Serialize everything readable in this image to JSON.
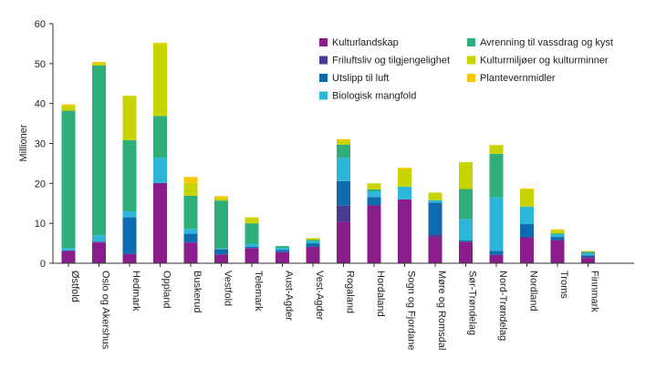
{
  "chart_data": {
    "type": "bar",
    "stacked": true,
    "ylabel": "Millioner",
    "ylim": [
      0,
      60
    ],
    "yticks": [
      0,
      10,
      20,
      30,
      40,
      50,
      60
    ],
    "grid": false,
    "legend_position": "top-right",
    "categories": [
      "Østfold",
      "Oslo og Akershus",
      "Hedmark",
      "Oppland",
      "Buskerud",
      "Vestfold",
      "Telemark",
      "Aust-Agder",
      "Vest-Agder",
      "Rogaland",
      "Hordaland",
      "Sogn og Fjordane",
      "Møre og Romsdal",
      "Sør-Trøndelag",
      "Nord-Trøndelag",
      "Nordland",
      "Troms",
      "Finnmark"
    ],
    "series": [
      {
        "name": "Kulturlandskap",
        "color": "#8B1C8B",
        "values": [
          3.0,
          5.2,
          2.3,
          20.1,
          5.2,
          2.2,
          3.8,
          2.8,
          4.0,
          10.4,
          14.5,
          16.0,
          6.6,
          5.4,
          2.1,
          6.5,
          5.8,
          1.3
        ]
      },
      {
        "name": "Friluftsliv og tilgjengelighet",
        "color": "#4A3A93",
        "values": [
          0.2,
          0.2,
          0.0,
          0.0,
          0.0,
          0.0,
          0.0,
          0.0,
          0.2,
          4.0,
          0.0,
          0.0,
          0.6,
          0.0,
          0.0,
          0.0,
          0.0,
          0.3
        ]
      },
      {
        "name": "Utslipp til luft",
        "color": "#0E6BB0",
        "values": [
          0.0,
          0.0,
          9.2,
          0.0,
          2.2,
          1.3,
          0.3,
          0.5,
          0.8,
          6.2,
          2.1,
          0.0,
          8.0,
          0.3,
          1.0,
          3.3,
          0.8,
          0.4
        ]
      },
      {
        "name": "Biologisk mangfold",
        "color": "#2DB6D9",
        "values": [
          0.6,
          1.6,
          1.5,
          6.3,
          1.2,
          0.2,
          0.8,
          0.5,
          0.5,
          5.8,
          1.4,
          3.2,
          0.6,
          5.4,
          13.4,
          4.4,
          0.6,
          0.5
        ]
      },
      {
        "name": "Avrenning til vassdrag og kyst",
        "color": "#2EAE7A",
        "values": [
          34.4,
          42.5,
          17.8,
          10.5,
          8.3,
          12.0,
          5.1,
          0.5,
          0.4,
          3.3,
          0.5,
          0.0,
          0.0,
          7.5,
          10.9,
          0.0,
          0.3,
          0.4
        ]
      },
      {
        "name": "Kulturmiljøer og kulturminner",
        "color": "#C8D400",
        "values": [
          1.3,
          0.6,
          11.0,
          18.0,
          3.2,
          0.5,
          1.3,
          0.0,
          0.4,
          1.0,
          1.5,
          4.3,
          1.9,
          6.7,
          2.2,
          4.3,
          0.7,
          0.0
        ]
      },
      {
        "name": "Plantevernmidler",
        "color": "#F7C600",
        "values": [
          0.3,
          0.3,
          0.2,
          0.3,
          1.5,
          0.6,
          0.2,
          0.0,
          0.0,
          0.4,
          0.0,
          0.4,
          0.0,
          0.0,
          0.0,
          0.2,
          0.3,
          0.2
        ]
      }
    ]
  }
}
